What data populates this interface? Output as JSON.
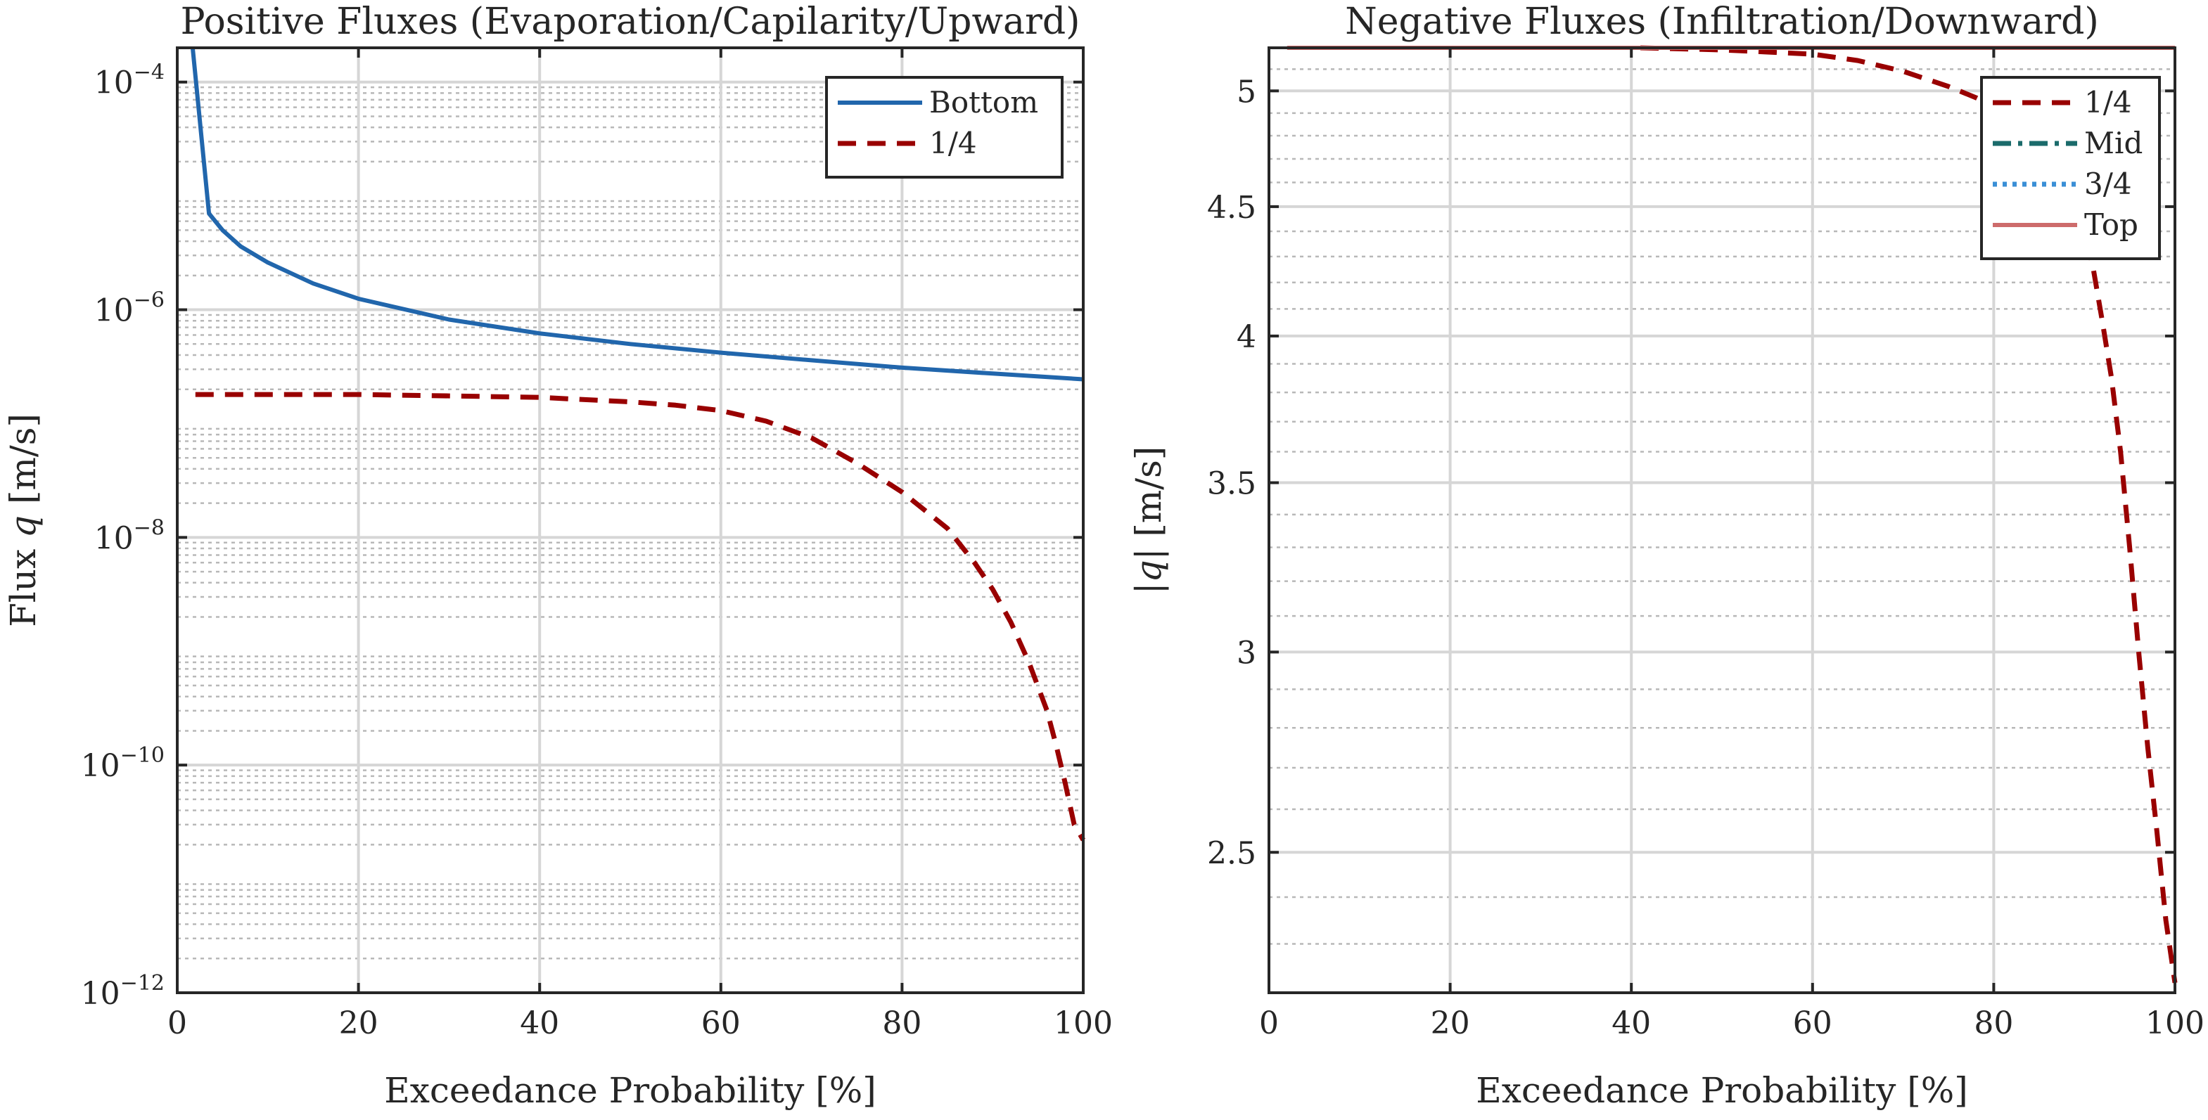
{
  "chart_data": [
    {
      "type": "line",
      "title": "Positive Fluxes (Evaporation/Capilarity/Upward)",
      "xlabel": "Exceedance Probability [%]",
      "ylabel_prefix": "Flux ",
      "ylabel_var": "q",
      "ylabel_suffix": " [m/s]",
      "yscale": "log",
      "xlim": [
        0,
        100
      ],
      "ylim": [
        1e-12,
        0.0002
      ],
      "xticks": [
        "0",
        "20",
        "40",
        "60",
        "80",
        "100"
      ],
      "yticks": [
        {
          "value": 1e-12,
          "base": "10",
          "exp": "−12"
        },
        {
          "value": 1e-10,
          "base": "10",
          "exp": "−10"
        },
        {
          "value": 1e-08,
          "base": "10",
          "exp": "−8"
        },
        {
          "value": 1e-06,
          "base": "10",
          "exp": "−6"
        },
        {
          "value": 0.0001,
          "base": "10",
          "exp": "−4"
        }
      ],
      "grid": true,
      "legend_position": "top-right",
      "series": [
        {
          "name": "Bottom",
          "color": "#2166ac",
          "style": "solid",
          "x": [
            1.7,
            3.5,
            5,
            7,
            10,
            15,
            20,
            30,
            40,
            50,
            60,
            70,
            80,
            90,
            100
          ],
          "y": [
            0.0002,
            7e-06,
            5e-06,
            3.6e-06,
            2.6e-06,
            1.7e-06,
            1.25e-06,
            8.2e-07,
            6.2e-07,
            5e-07,
            4.2e-07,
            3.6e-07,
            3.1e-07,
            2.75e-07,
            2.45e-07
          ]
        },
        {
          "name": "1/4",
          "color": "#990000",
          "style": "dashed",
          "x": [
            2,
            10,
            20,
            30,
            40,
            50,
            55,
            60,
            65,
            70,
            75,
            80,
            85,
            88,
            90,
            92,
            94,
            96,
            97,
            98,
            99,
            100
          ],
          "y": [
            1.8e-07,
            1.8e-07,
            1.8e-07,
            1.75e-07,
            1.7e-07,
            1.55e-07,
            1.45e-07,
            1.3e-07,
            1.05e-07,
            7.5e-08,
            4.5e-08,
            2.5e-08,
            1.2e-08,
            6e-09,
            3.5e-09,
            1.8e-09,
            8e-10,
            3e-10,
            1.5e-10,
            7e-11,
            3e-11,
            2.2e-11
          ]
        }
      ]
    },
    {
      "type": "line",
      "title": "Negative Fluxes (Infiltration/Downward)",
      "xlabel": "Exceedance Probability [%]",
      "ylabel_prefix": "|",
      "ylabel_var": "q",
      "ylabel_suffix": "| [m/s]",
      "yscale": "log",
      "xlim": [
        0,
        100
      ],
      "ylim": [
        2.2,
        5.2
      ],
      "xticks": [
        "0",
        "20",
        "40",
        "60",
        "80",
        "100"
      ],
      "yticks": [
        {
          "value": 2.5,
          "label": "2.5"
        },
        {
          "value": 3,
          "label": "3"
        },
        {
          "value": 3.5,
          "label": "3.5"
        },
        {
          "value": 4,
          "label": "4"
        },
        {
          "value": 4.5,
          "label": "4.5"
        },
        {
          "value": 5,
          "label": "5"
        }
      ],
      "grid": true,
      "legend_position": "top-right",
      "series": [
        {
          "name": "1/4",
          "color": "#990000",
          "style": "dashed",
          "x": [
            41,
            50,
            55,
            60,
            65,
            70,
            75,
            78,
            80,
            83,
            86,
            88,
            90,
            91,
            92,
            93,
            94,
            95,
            96,
            97,
            98,
            99,
            100
          ],
          "y": [
            5.2,
            5.19,
            5.18,
            5.17,
            5.14,
            5.09,
            5.02,
            4.97,
            4.93,
            4.85,
            4.72,
            4.6,
            4.42,
            4.25,
            4.05,
            3.85,
            3.6,
            3.3,
            3.0,
            2.75,
            2.55,
            2.35,
            2.22
          ]
        },
        {
          "name": "Mid",
          "color": "#1b6b6b",
          "style": "dashdot",
          "x": [],
          "y": []
        },
        {
          "name": "3/4",
          "color": "#3a8fd6",
          "style": "dotted",
          "x": [],
          "y": []
        },
        {
          "name": "Top",
          "color": "#cd6b6b",
          "style": "solid",
          "x": [
            2,
            20,
            40,
            60,
            80,
            100
          ],
          "y": [
            5.2,
            5.2,
            5.2,
            5.2,
            5.2,
            5.2
          ]
        }
      ]
    }
  ]
}
